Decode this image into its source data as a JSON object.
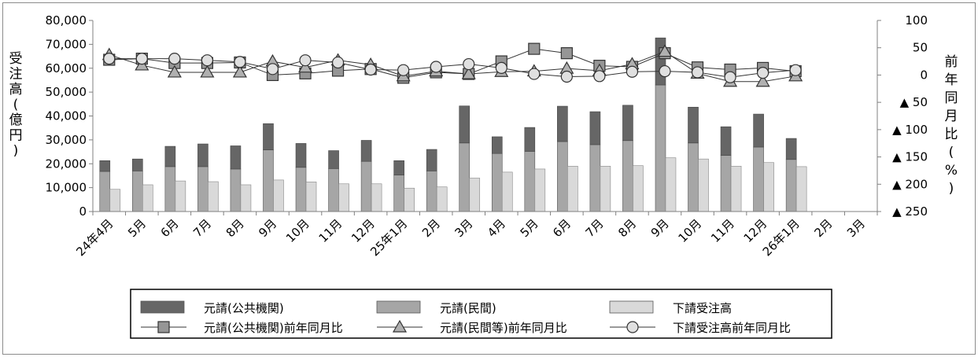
{
  "chart_data": {
    "type": "bar",
    "stacked": true,
    "title": "",
    "ylabel_left": "受注高(億円)",
    "ylabel_right": "前年同月比(%)",
    "ylim_left": [
      0,
      80000
    ],
    "ylim_right": [
      -250,
      100
    ],
    "left_ticks": [
      0,
      10000,
      20000,
      30000,
      40000,
      50000,
      60000,
      70000,
      80000
    ],
    "left_tick_labels": [
      "0",
      "10,000",
      "20,000",
      "30,000",
      "40,000",
      "50,000",
      "60,000",
      "70,000",
      "80,000"
    ],
    "right_ticks": [
      100,
      50,
      0,
      -50,
      -100,
      -150,
      -200,
      -250
    ],
    "right_tick_labels": [
      "100",
      "50",
      "0",
      "▲ 50",
      "▲ 100",
      "▲ 150",
      "▲ 200",
      "▲ 250"
    ],
    "categories": [
      "24年4月",
      "5月",
      "6月",
      "7月",
      "8月",
      "9月",
      "10月",
      "11月",
      "12月",
      "25年1月",
      "2月",
      "3月",
      "4月",
      "5月",
      "6月",
      "7月",
      "8月",
      "9月",
      "10月",
      "11月",
      "12月",
      "26年1月",
      "2月",
      "3月"
    ],
    "series": [
      {
        "name": "元請(公共機関)",
        "kind": "bar",
        "color": "#666666",
        "values": [
          4500,
          5000,
          8500,
          9500,
          9700,
          11000,
          10000,
          7500,
          8800,
          6000,
          9000,
          15500,
          7000,
          10000,
          14800,
          13800,
          14800,
          19700,
          15000,
          12000,
          13800,
          8800,
          null,
          null
        ]
      },
      {
        "name": "元請(民間)",
        "kind": "bar",
        "color": "#a6a6a6",
        "values": [
          16800,
          17000,
          18800,
          18800,
          17800,
          25800,
          18500,
          18000,
          21000,
          15300,
          17000,
          28700,
          24300,
          25200,
          29300,
          28000,
          29700,
          53000,
          28700,
          23500,
          27000,
          21800,
          null,
          null
        ]
      },
      {
        "name": "下請受注高",
        "kind": "bar",
        "color": "#d9d9d9",
        "values": [
          9300,
          11200,
          12800,
          12500,
          11200,
          13200,
          12400,
          11600,
          11600,
          9800,
          10300,
          14000,
          16500,
          17800,
          19000,
          19000,
          19200,
          22500,
          22000,
          19000,
          20500,
          18800,
          null,
          null
        ]
      },
      {
        "name": "元請(公共機関)前年同月比",
        "kind": "line",
        "marker": "square",
        "values": [
          28,
          30,
          22,
          22,
          23,
          0,
          3,
          8,
          11,
          -5,
          5,
          2,
          25,
          48,
          40,
          17,
          15,
          40,
          14,
          10,
          13,
          7,
          null,
          null
        ]
      },
      {
        "name": "元請(民間等)前年同月比",
        "kind": "line",
        "marker": "triangle",
        "values": [
          37,
          18,
          5,
          5,
          5,
          25,
          14,
          27,
          19,
          -2,
          7,
          2,
          6,
          7,
          12,
          8,
          20,
          43,
          3,
          -12,
          -12,
          -2,
          null,
          null
        ]
      },
      {
        "name": "下請受注高前年同月比",
        "kind": "line",
        "marker": "circle",
        "values": [
          30,
          30,
          30,
          27,
          24,
          11,
          27,
          23,
          10,
          9,
          15,
          20,
          13,
          2,
          -3,
          -2,
          6,
          7,
          5,
          -4,
          4,
          9,
          null,
          null
        ]
      }
    ],
    "legend": [
      "元請(公共機関)",
      "元請(民間)",
      "下請受注高",
      "元請(公共機関)前年同月比",
      "元請(民間等)前年同月比",
      "下請受注高前年同月比"
    ],
    "legend_position": "bottom",
    "grid": false
  }
}
